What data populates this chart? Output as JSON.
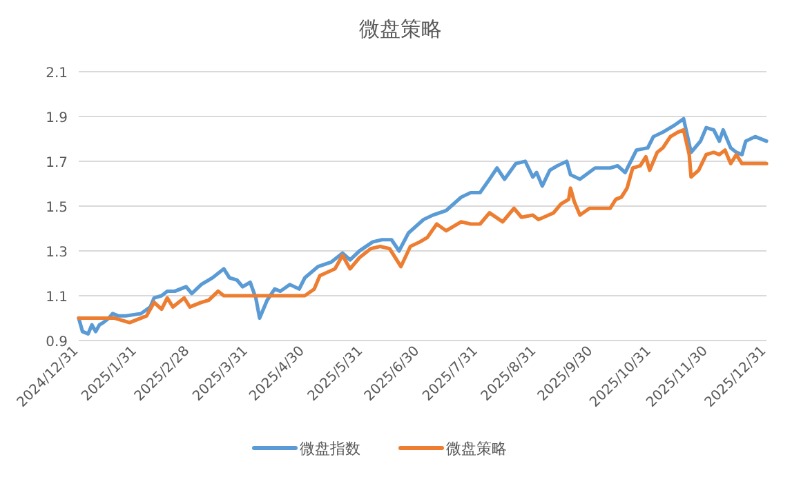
{
  "chart_data": {
    "type": "line",
    "title": "微盘策略",
    "xlim": [
      "2024-12-31",
      "2025-12-31"
    ],
    "xticks": [
      {
        "value": "2024-12-31",
        "label": "2024/12/31"
      },
      {
        "value": "2025-01-31",
        "label": "2025/1/31"
      },
      {
        "value": "2025-02-28",
        "label": "2025/2/28"
      },
      {
        "value": "2025-03-31",
        "label": "2025/3/31"
      },
      {
        "value": "2025-04-30",
        "label": "2025/4/30"
      },
      {
        "value": "2025-05-31",
        "label": "2025/5/31"
      },
      {
        "value": "2025-06-30",
        "label": "2025/6/30"
      },
      {
        "value": "2025-07-31",
        "label": "2025/7/31"
      },
      {
        "value": "2025-08-31",
        "label": "2025/8/31"
      },
      {
        "value": "2025-09-30",
        "label": "2025/9/30"
      },
      {
        "value": "2025-10-31",
        "label": "2025/10/31"
      },
      {
        "value": "2025-11-30",
        "label": "2025/11/30"
      },
      {
        "value": "2025-12-31",
        "label": "2025/12/31"
      }
    ],
    "ylim": [
      0.9,
      2.1
    ],
    "yticks": [
      0.9,
      1.1,
      1.3,
      1.5,
      1.7,
      1.9,
      2.1
    ],
    "grid": "y",
    "legend": "bottom",
    "line_style": "solid",
    "marker": "none",
    "series": [
      {
        "name": "微盘指数",
        "color": "#5b9bd5",
        "x": [
          "2024-12-31",
          "2025-01-02",
          "2025-01-05",
          "2025-01-07",
          "2025-01-09",
          "2025-01-11",
          "2025-01-13",
          "2025-01-16",
          "2025-01-18",
          "2025-01-21",
          "2025-01-25",
          "2025-02-02",
          "2025-02-07",
          "2025-02-09",
          "2025-02-13",
          "2025-02-16",
          "2025-02-20",
          "2025-02-26",
          "2025-03-01",
          "2025-03-06",
          "2025-03-12",
          "2025-03-18",
          "2025-03-21",
          "2025-03-25",
          "2025-03-28",
          "2025-04-01",
          "2025-04-04",
          "2025-04-06",
          "2025-04-10",
          "2025-04-14",
          "2025-04-17",
          "2025-04-22",
          "2025-04-27",
          "2025-04-30",
          "2025-05-07",
          "2025-05-14",
          "2025-05-20",
          "2025-05-24",
          "2025-05-29",
          "2025-06-05",
          "2025-06-10",
          "2025-06-15",
          "2025-06-19",
          "2025-06-24",
          "2025-07-02",
          "2025-07-07",
          "2025-07-14",
          "2025-07-22",
          "2025-07-27",
          "2025-08-01",
          "2025-08-06",
          "2025-08-10",
          "2025-08-14",
          "2025-08-20",
          "2025-08-25",
          "2025-08-29",
          "2025-08-31",
          "2025-09-03",
          "2025-09-07",
          "2025-09-11",
          "2025-09-16",
          "2025-09-18",
          "2025-09-23",
          "2025-10-01",
          "2025-10-09",
          "2025-10-13",
          "2025-10-17",
          "2025-10-23",
          "2025-10-29",
          "2025-11-01",
          "2025-11-06",
          "2025-11-12",
          "2025-11-17",
          "2025-11-21",
          "2025-11-26",
          "2025-11-29",
          "2025-12-03",
          "2025-12-06",
          "2025-12-08",
          "2025-12-12",
          "2025-12-15",
          "2025-12-18",
          "2025-12-20",
          "2025-12-25",
          "2025-12-31"
        ],
        "values": [
          1.0,
          0.94,
          0.93,
          0.97,
          0.94,
          0.97,
          0.98,
          1.0,
          1.02,
          1.01,
          1.01,
          1.02,
          1.05,
          1.09,
          1.1,
          1.12,
          1.12,
          1.14,
          1.11,
          1.15,
          1.18,
          1.22,
          1.18,
          1.17,
          1.14,
          1.16,
          1.09,
          1.0,
          1.08,
          1.13,
          1.12,
          1.15,
          1.13,
          1.18,
          1.23,
          1.25,
          1.29,
          1.26,
          1.3,
          1.34,
          1.35,
          1.35,
          1.3,
          1.38,
          1.44,
          1.46,
          1.48,
          1.54,
          1.56,
          1.56,
          1.62,
          1.67,
          1.62,
          1.69,
          1.7,
          1.63,
          1.65,
          1.59,
          1.66,
          1.68,
          1.7,
          1.64,
          1.62,
          1.67,
          1.67,
          1.68,
          1.65,
          1.75,
          1.76,
          1.81,
          1.83,
          1.86,
          1.89,
          1.74,
          1.79,
          1.85,
          1.84,
          1.79,
          1.84,
          1.76,
          1.74,
          1.73,
          1.79,
          1.81,
          1.79
        ]
      },
      {
        "name": "微盘策略",
        "color": "#ed7d31",
        "x": [
          "2024-12-31",
          "2025-01-19",
          "2025-01-27",
          "2025-02-05",
          "2025-02-09",
          "2025-02-13",
          "2025-02-16",
          "2025-02-19",
          "2025-02-25",
          "2025-02-28",
          "2025-03-06",
          "2025-03-10",
          "2025-03-15",
          "2025-03-18",
          "2025-04-30",
          "2025-05-05",
          "2025-05-08",
          "2025-05-16",
          "2025-05-20",
          "2025-05-24",
          "2025-05-29",
          "2025-06-04",
          "2025-06-09",
          "2025-06-14",
          "2025-06-20",
          "2025-06-25",
          "2025-06-30",
          "2025-07-04",
          "2025-07-09",
          "2025-07-14",
          "2025-07-22",
          "2025-07-27",
          "2025-08-01",
          "2025-08-06",
          "2025-08-13",
          "2025-08-19",
          "2025-08-23",
          "2025-08-29",
          "2025-09-01",
          "2025-09-09",
          "2025-09-13",
          "2025-09-17",
          "2025-09-18",
          "2025-09-20",
          "2025-09-23",
          "2025-09-28",
          "2025-10-09",
          "2025-10-12",
          "2025-10-15",
          "2025-10-18",
          "2025-10-21",
          "2025-10-25",
          "2025-10-28",
          "2025-10-30",
          "2025-11-03",
          "2025-11-06",
          "2025-11-10",
          "2025-11-14",
          "2025-11-17",
          "2025-11-20",
          "2025-11-21",
          "2025-11-25",
          "2025-11-29",
          "2025-12-03",
          "2025-12-06",
          "2025-12-09",
          "2025-12-12",
          "2025-12-15",
          "2025-12-18",
          "2025-12-31"
        ],
        "values": [
          1.0,
          1.0,
          0.98,
          1.01,
          1.07,
          1.04,
          1.09,
          1.05,
          1.09,
          1.05,
          1.07,
          1.08,
          1.12,
          1.1,
          1.1,
          1.13,
          1.19,
          1.22,
          1.28,
          1.22,
          1.27,
          1.31,
          1.32,
          1.31,
          1.23,
          1.32,
          1.34,
          1.36,
          1.42,
          1.39,
          1.43,
          1.42,
          1.42,
          1.47,
          1.43,
          1.49,
          1.45,
          1.46,
          1.44,
          1.47,
          1.51,
          1.53,
          1.58,
          1.52,
          1.46,
          1.49,
          1.49,
          1.53,
          1.54,
          1.58,
          1.67,
          1.68,
          1.72,
          1.66,
          1.74,
          1.76,
          1.81,
          1.83,
          1.84,
          1.73,
          1.63,
          1.66,
          1.73,
          1.74,
          1.73,
          1.75,
          1.69,
          1.73,
          1.69,
          1.69
        ]
      }
    ]
  }
}
